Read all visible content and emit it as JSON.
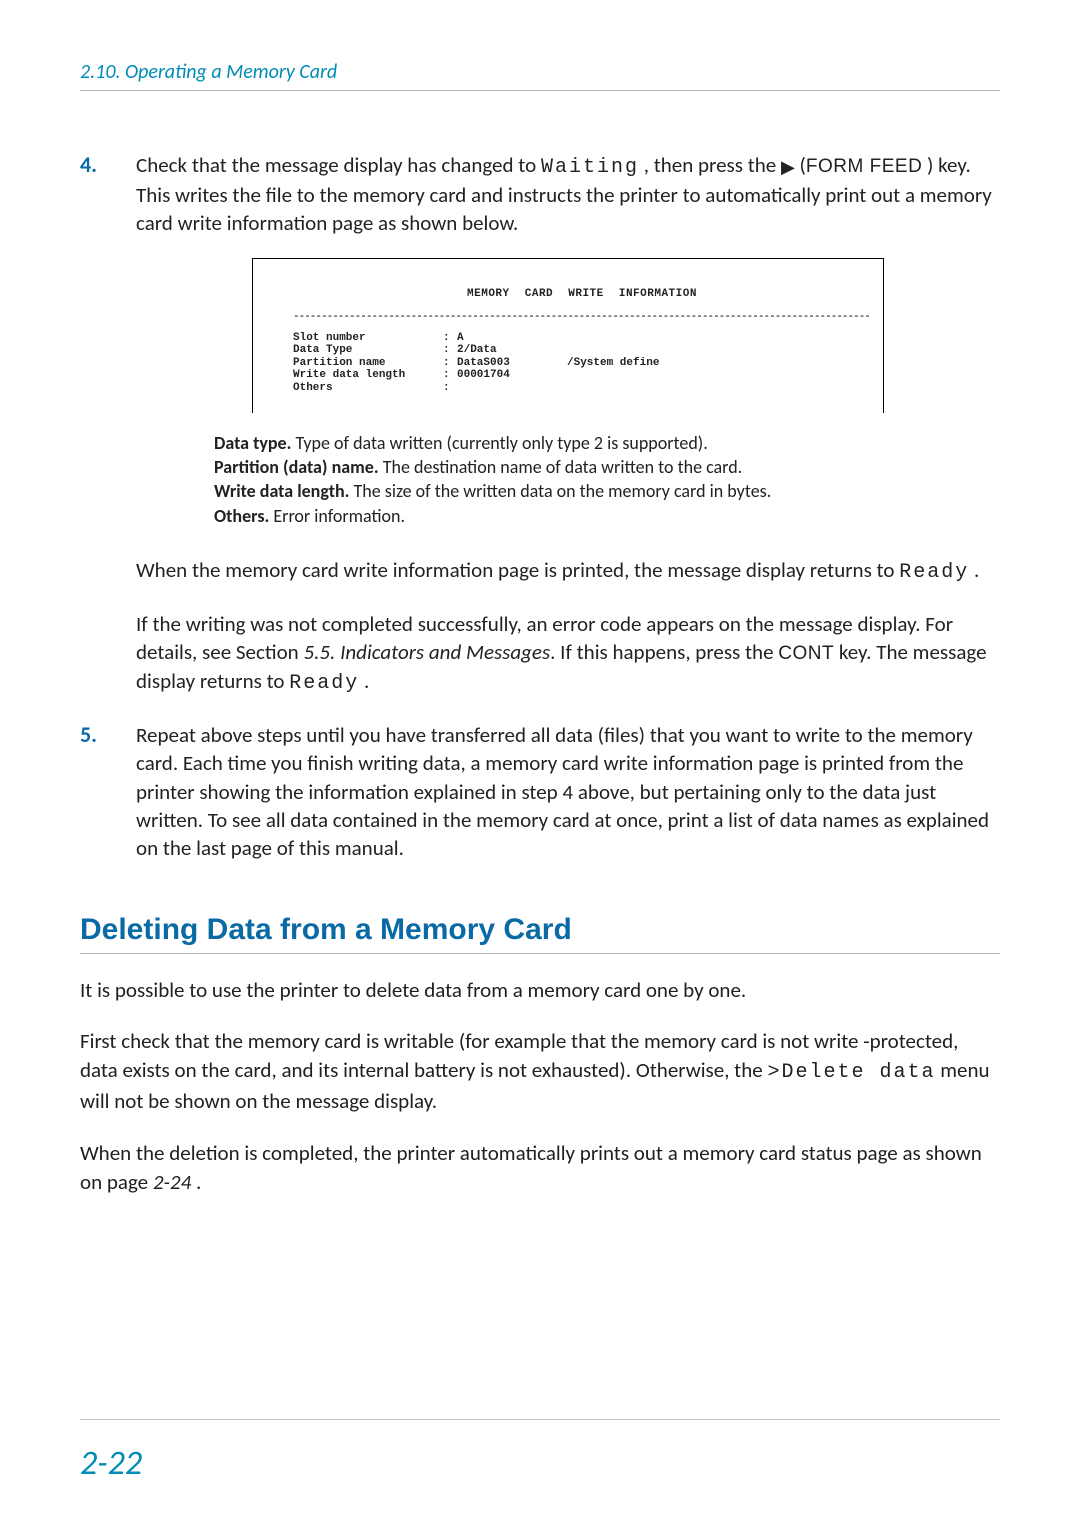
{
  "page": {
    "running_head": "2.10.  Operating a Memory Card",
    "page_number": "2-22"
  },
  "step4": {
    "num": "4.",
    "text_a": "Check that the message display has changed to ",
    "waiting": "Waiting",
    "text_b": " , then press the ",
    "triangle": "▶",
    "text_c": " (",
    "key": "FORM FEED",
    "text_d": " ) key. This writes the file to the memory card and instructs the printer to automatically print out a memory card write information page as shown below."
  },
  "figure": {
    "title": "MEMORY CARD   WRITE   INFORMATION",
    "rows": [
      {
        "label": "Slot number",
        "val": "A",
        "extra": ""
      },
      {
        "label": "Data Type",
        "val": "2/Data",
        "extra": ""
      },
      {
        "label": "Partition name",
        "val": "DataS003",
        "extra": "/System define"
      },
      {
        "label": "Write data length",
        "val": "00001704",
        "extra": ""
      },
      {
        "label": "Others",
        "val": "",
        "extra": ""
      }
    ]
  },
  "definitions": {
    "datatype_b": "Data type.",
    "datatype_t": " Type of data written (currently only type 2 is supported).",
    "part_b": "Partition (data) name.",
    "part_t": " The destination name of data written to the card.",
    "len_b": "Write data length.",
    "len_t": " The size of the written data on the memory card in bytes.",
    "oth_b": "Others.",
    "oth_t": " Error information."
  },
  "after_fig": {
    "p1a": "When the memory card write information page is printed, the message display returns to ",
    "p1_ready": "Ready",
    "p1b": " .",
    "p2a": "If the writing was not completed successfully, an error code appears on the message display. For details, see Section ",
    "ref": "5.5.  Indicators and Messages",
    "p2b": ". If this happens, press the ",
    "key": "CONT",
    "p2c": " key. The message display returns to ",
    "p2_ready": "Ready",
    "p2d": " ."
  },
  "step5": {
    "num": "5.",
    "text": "Repeat above steps until you have transferred all data (files) that you want to write to the memory card. Each time you finish writing data, a memory card write information page is printed from the printer showing the information explained in step 4 above, but pertaining only to the data just written. To see all data contained in the memory card at once, print a list of data names as explained on the last page of this manual."
  },
  "section": {
    "heading": "Deleting Data from a Memory Card",
    "p1": "It is possible to use the printer to delete data from a memory card one by one.",
    "p2a": "First check that the memory card is writable (for example that the memory card is not write -protected, data exists on the card, and its internal battery is not exhausted). Otherwise, the ",
    "menu": ">Delete data",
    "p2b": " menu will not be shown on the message display.",
    "p3a": "When the deletion is completed, the printer automatically prints out a memory card status page as shown on page ",
    "pref": "2-24",
    "p3b": " ."
  },
  "style": {
    "accent": "#0a6aa6",
    "teal": "#008cb4"
  }
}
